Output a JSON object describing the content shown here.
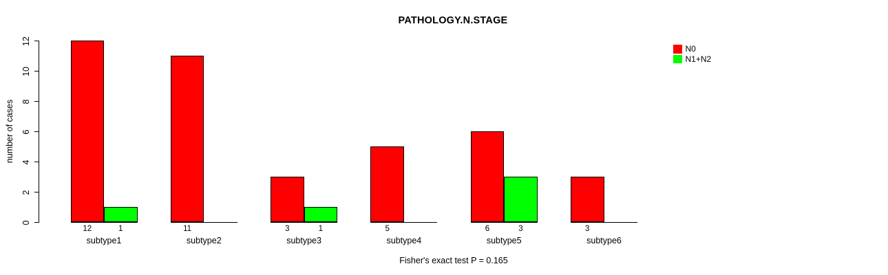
{
  "chart_data": {
    "type": "bar",
    "title": "PATHOLOGY.N.STAGE",
    "xlabel": "",
    "ylabel": "number of cases",
    "ylim": [
      0,
      12
    ],
    "yticks": [
      0,
      2,
      4,
      6,
      8,
      10,
      12
    ],
    "categories": [
      "subtype1",
      "subtype2",
      "subtype3",
      "subtype4",
      "subtype5",
      "subtype6"
    ],
    "series": [
      {
        "name": "N0",
        "color": "#ff0000",
        "values": [
          12,
          11,
          3,
          5,
          6,
          3
        ]
      },
      {
        "name": "N1+N2",
        "color": "#00ff00",
        "values": [
          1,
          0,
          1,
          0,
          3,
          0
        ]
      }
    ],
    "bar_value_labels_shown": true,
    "zero_value_labels_hidden": true,
    "legend_position": "top-right",
    "grid": false,
    "bar_border_color": "#000000",
    "caption": "Fisher's exact test P = 0.165"
  }
}
